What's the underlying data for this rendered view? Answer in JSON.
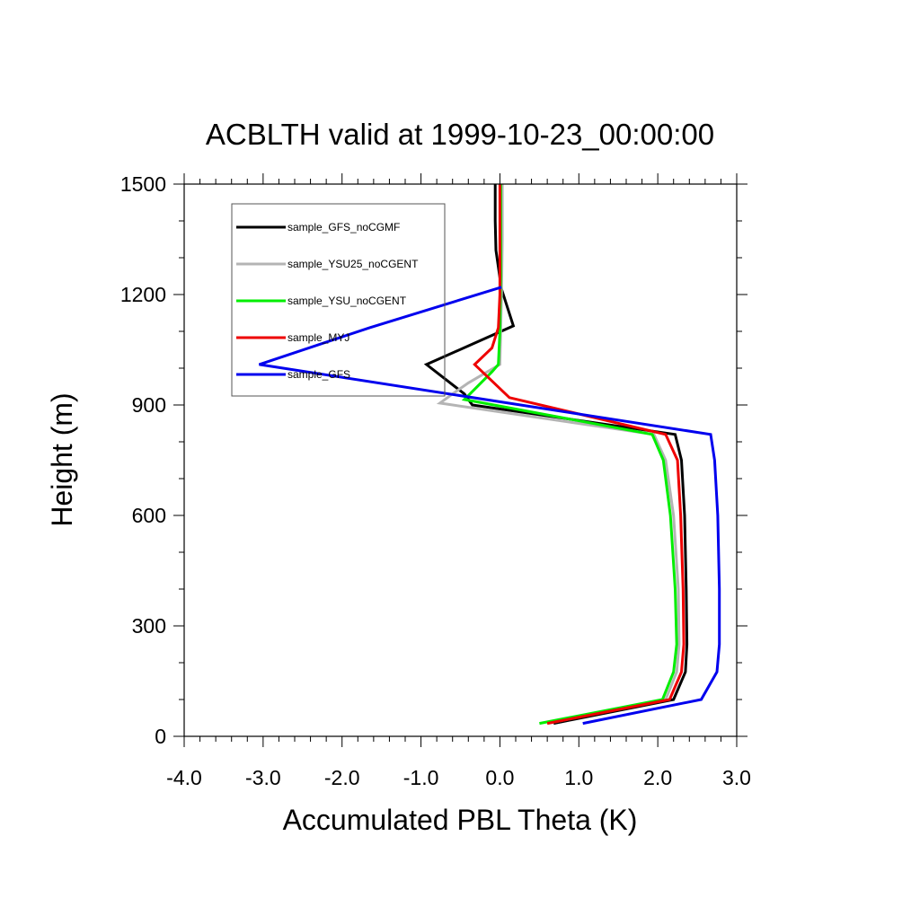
{
  "chart_data": {
    "type": "line",
    "title": "ACBLTH valid at 1999-10-23_00:00:00",
    "xlabel": "Accumulated PBL Theta (K)",
    "ylabel": "Height (m)",
    "xlim": [
      -4.0,
      3.0
    ],
    "ylim": [
      0,
      1500
    ],
    "xticks": [
      -4.0,
      -3.0,
      -2.0,
      -1.0,
      0.0,
      1.0,
      2.0,
      3.0
    ],
    "xtick_labels": [
      "-4.0",
      "-3.0",
      "-2.0",
      "-1.0",
      "0.0",
      "1.0",
      "2.0",
      "3.0"
    ],
    "yticks": [
      0,
      300,
      600,
      900,
      1200,
      1500
    ],
    "ytick_labels": [
      "0",
      "300",
      "600",
      "900",
      "1200",
      "1500"
    ],
    "grid": false,
    "legend_position": "top-left",
    "series": [
      {
        "name": "sample_GFS_noCGMF",
        "color": "#000000",
        "x": [
          0.68,
          2.2,
          2.35,
          2.37,
          2.36,
          2.34,
          2.3,
          2.22,
          -0.35,
          -0.45,
          -0.93,
          0.17,
          0.02,
          -0.05,
          -0.06,
          -0.06
        ],
        "y": [
          35,
          100,
          175,
          250,
          400,
          600,
          750,
          820,
          900,
          930,
          1010,
          1115,
          1215,
          1320,
          1400,
          1500
        ]
      },
      {
        "name": "sample_YSU25_noCGENT",
        "color": "#b4b4b4",
        "x": [
          0.6,
          2.1,
          2.24,
          2.27,
          2.26,
          2.2,
          2.1,
          1.95,
          -0.76,
          -0.6,
          -0.4,
          0.0,
          0.01,
          0.02,
          0.03,
          0.03
        ],
        "y": [
          35,
          100,
          175,
          250,
          400,
          600,
          750,
          820,
          905,
          930,
          960,
          1010,
          1100,
          1200,
          1350,
          1500
        ]
      },
      {
        "name": "sample_YSU_noCGENT",
        "color": "#00ee00",
        "x": [
          0.5,
          2.06,
          2.2,
          2.24,
          2.22,
          2.16,
          2.07,
          1.93,
          -0.45,
          -0.1,
          -0.02,
          0.0,
          0.01,
          0.01
        ],
        "y": [
          35,
          100,
          175,
          250,
          400,
          600,
          750,
          820,
          915,
          990,
          1010,
          1100,
          1250,
          1500
        ]
      },
      {
        "name": "sample_MYJ",
        "color": "#ee0000",
        "x": [
          0.6,
          2.15,
          2.3,
          2.33,
          2.32,
          2.29,
          2.25,
          2.1,
          0.12,
          -0.32,
          -0.1,
          -0.02,
          0.0,
          0.0,
          0.0
        ],
        "y": [
          35,
          100,
          175,
          250,
          400,
          600,
          750,
          820,
          920,
          1010,
          1055,
          1110,
          1200,
          1350,
          1500
        ]
      },
      {
        "name": "sample_GFS",
        "color": "#0000ee",
        "x": [
          1.05,
          2.55,
          2.75,
          2.78,
          2.78,
          2.76,
          2.72,
          2.67,
          -3.05,
          -1.65,
          0.02
        ],
        "y": [
          35,
          100,
          175,
          250,
          400,
          600,
          750,
          820,
          1010,
          1110,
          1220
        ]
      }
    ]
  }
}
